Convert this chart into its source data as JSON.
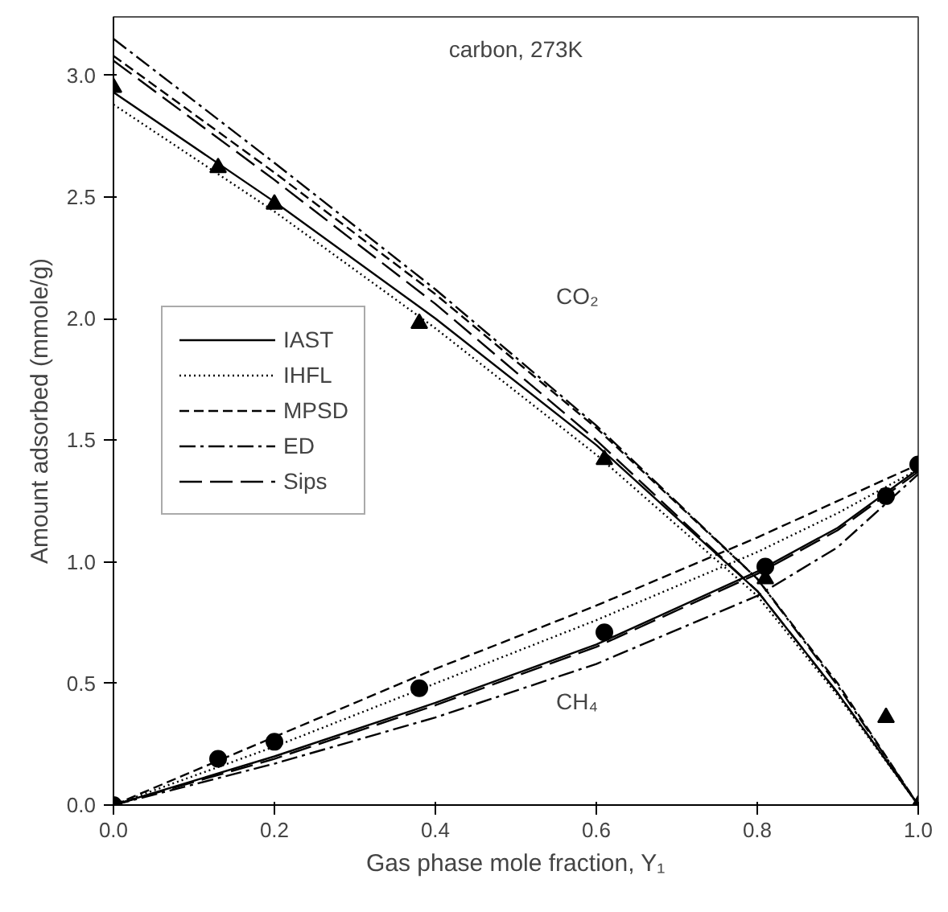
{
  "chart_data": {
    "type": "line",
    "xlabel": "Gas phase mole fraction, Y₁",
    "ylabel": "Amount adsorbed (mmole/g)",
    "xlim": [
      0,
      1
    ],
    "ylim": [
      0,
      3.24
    ],
    "xticks": [
      {
        "value": 0,
        "label": "0.0"
      },
      0.2,
      0.4,
      0.6,
      0.8,
      {
        "value": 1,
        "label": "1.0"
      }
    ],
    "yticks": [
      {
        "value": 0,
        "label": "0.0"
      },
      0.5,
      {
        "value": 1,
        "label": "1.0"
      },
      1.5,
      {
        "value": 2,
        "label": "2.0"
      },
      2.5,
      {
        "value": 3,
        "label": "3.0"
      }
    ],
    "grid": false,
    "legend": "left",
    "annotations": [
      "carbon, 273K",
      "CO₂",
      "CH₄"
    ],
    "series": [
      {
        "name": "IAST",
        "line_style": "solid",
        "color": "#000000",
        "x": [
          0,
          0.2,
          0.4,
          0.6,
          0.8,
          0.9,
          1
        ],
        "values": [
          2.93,
          2.48,
          2.0,
          1.48,
          0.88,
          0.46,
          0
        ]
      },
      {
        "name": "IHFL",
        "line_style": "dotted",
        "color": "#000000",
        "x": [
          0,
          0.2,
          0.4,
          0.6,
          0.8,
          0.9,
          1
        ],
        "values": [
          2.88,
          2.44,
          1.96,
          1.44,
          0.86,
          0.45,
          0
        ]
      },
      {
        "name": "MPSD",
        "line_style": "dashed",
        "color": "#000000",
        "x": [
          0,
          0.2,
          0.4,
          0.6,
          0.8,
          0.9,
          1
        ],
        "values": [
          3.08,
          2.6,
          2.1,
          1.55,
          0.93,
          0.5,
          0
        ]
      },
      {
        "name": "ED",
        "line_style": "dashdot",
        "color": "#000000",
        "x": [
          0,
          0.2,
          0.4,
          0.6,
          0.8,
          0.9,
          1
        ],
        "values": [
          3.15,
          2.64,
          2.12,
          1.56,
          0.93,
          0.49,
          0
        ]
      },
      {
        "name": "Sips",
        "line_style": "longdash",
        "color": "#000000",
        "x": [
          0,
          0.2,
          0.4,
          0.6,
          0.8,
          0.9,
          1
        ],
        "values": [
          3.06,
          2.57,
          2.06,
          1.5,
          0.88,
          0.46,
          0
        ]
      },
      {
        "line_style": "solid",
        "color": "#000000",
        "x": [
          0,
          0.2,
          0.4,
          0.6,
          0.8,
          0.9,
          1
        ],
        "values": [
          0,
          0.2,
          0.42,
          0.66,
          0.96,
          1.14,
          1.38
        ]
      },
      {
        "line_style": "dotted",
        "color": "#000000",
        "x": [
          0,
          0.2,
          0.4,
          0.6,
          0.8,
          0.9,
          1
        ],
        "values": [
          0,
          0.24,
          0.5,
          0.76,
          1.04,
          1.2,
          1.38
        ]
      },
      {
        "line_style": "dashed",
        "color": "#000000",
        "x": [
          0,
          0.2,
          0.4,
          0.6,
          0.8,
          0.9,
          1
        ],
        "values": [
          0,
          0.28,
          0.56,
          0.82,
          1.1,
          1.25,
          1.4
        ]
      },
      {
        "line_style": "dashdot",
        "color": "#000000",
        "x": [
          0,
          0.2,
          0.4,
          0.6,
          0.8,
          0.9,
          1
        ],
        "values": [
          0,
          0.17,
          0.36,
          0.58,
          0.86,
          1.06,
          1.36
        ]
      },
      {
        "line_style": "longdash",
        "color": "#000000",
        "x": [
          0,
          0.2,
          0.4,
          0.6,
          0.8,
          0.9,
          1
        ],
        "values": [
          0,
          0.19,
          0.41,
          0.65,
          0.95,
          1.13,
          1.37
        ]
      },
      {
        "type": "scatter",
        "marker": "triangle",
        "color": "#000000",
        "x": [
          0,
          0.13,
          0.2,
          0.38,
          0.61,
          0.81,
          0.96,
          1.0
        ],
        "values": [
          2.95,
          2.62,
          2.47,
          1.98,
          1.42,
          0.93,
          0.36,
          0.0
        ]
      },
      {
        "type": "scatter",
        "marker": "circle",
        "color": "#000000",
        "x": [
          0,
          0.13,
          0.2,
          0.38,
          0.61,
          0.81,
          0.96,
          1.0
        ],
        "values": [
          0,
          0.19,
          0.26,
          0.48,
          0.71,
          0.98,
          1.27,
          1.4
        ]
      }
    ]
  }
}
